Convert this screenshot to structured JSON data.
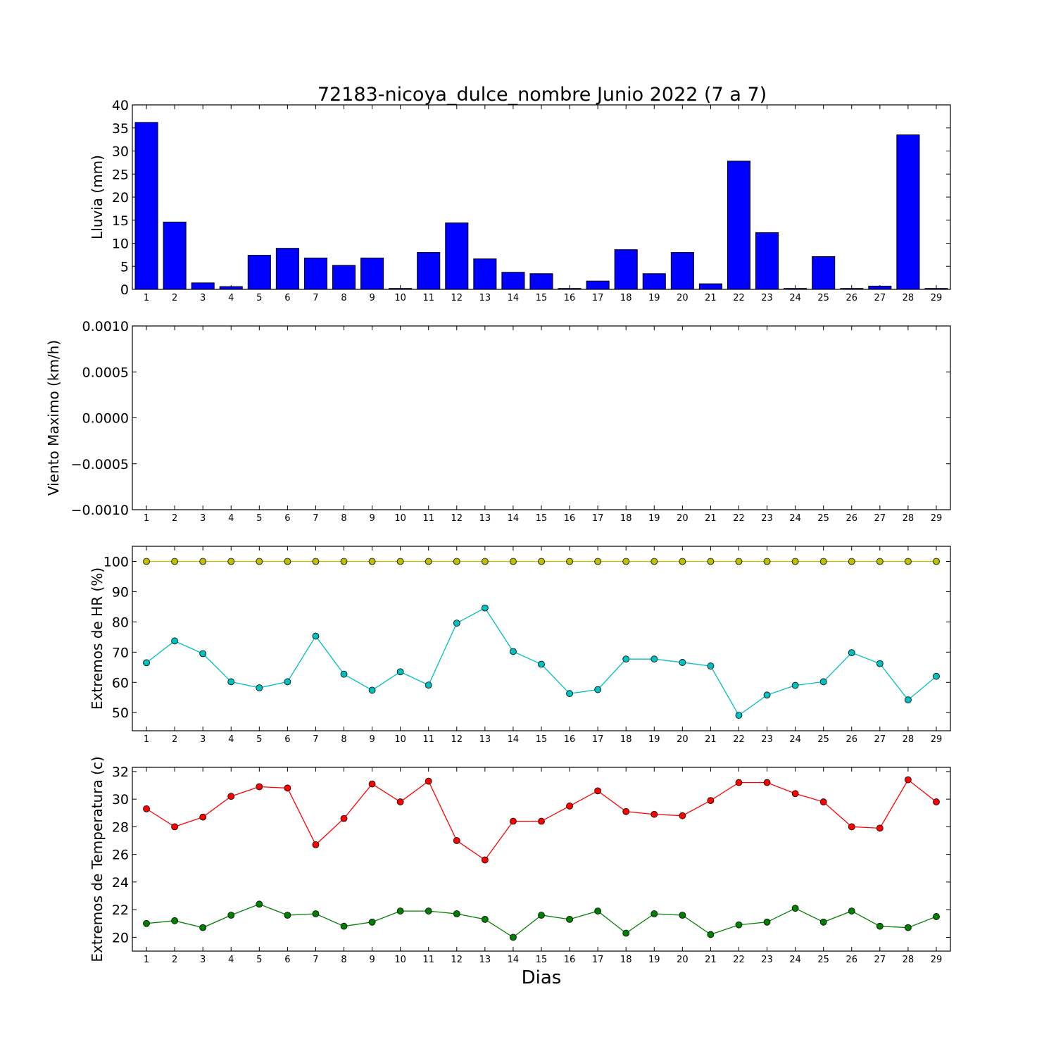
{
  "title": "72183-nicoya_dulce_nombre Junio 2022  (7 a 7)",
  "xlabel": "Dias",
  "chart_data": [
    {
      "type": "bar",
      "ylabel": "Lluvia (mm)",
      "ylim": [
        0,
        40
      ],
      "yticks": [
        "0",
        "5",
        "10",
        "15",
        "20",
        "25",
        "30",
        "35",
        "40"
      ],
      "x": [
        1,
        2,
        3,
        4,
        5,
        6,
        7,
        8,
        9,
        10,
        11,
        12,
        13,
        14,
        15,
        16,
        17,
        18,
        19,
        20,
        21,
        22,
        23,
        24,
        25,
        26,
        27,
        28,
        29
      ],
      "xticks": [
        "1",
        "2",
        "3",
        "4",
        "5",
        "6",
        "7",
        "8",
        "9",
        "10",
        "11",
        "12",
        "13",
        "14",
        "15",
        "16",
        "17",
        "18",
        "19",
        "20",
        "21",
        "22",
        "23",
        "24",
        "25",
        "26",
        "27",
        "28",
        "29"
      ],
      "series": [
        {
          "color": "#0000ff",
          "values": [
            36.2,
            14.6,
            1.4,
            0.6,
            7.4,
            8.9,
            6.8,
            5.2,
            6.8,
            0.2,
            8.0,
            14.4,
            6.6,
            3.7,
            3.4,
            0.2,
            1.8,
            8.6,
            3.4,
            8.0,
            1.2,
            27.8,
            12.3,
            0.2,
            7.1,
            0.2,
            0.7,
            33.5,
            0.2
          ]
        }
      ]
    },
    {
      "type": "line",
      "ylabel": "Viento Maximo (km/h)",
      "ylim": [
        -0.001,
        0.001
      ],
      "yticks": [
        "−0.0010",
        "−0.0005",
        "0.0000",
        "0.0005",
        "0.0010"
      ],
      "x": [
        1,
        2,
        3,
        4,
        5,
        6,
        7,
        8,
        9,
        10,
        11,
        12,
        13,
        14,
        15,
        16,
        17,
        18,
        19,
        20,
        21,
        22,
        23,
        24,
        25,
        26,
        27,
        28,
        29
      ],
      "xticks": [
        "1",
        "2",
        "3",
        "4",
        "5",
        "6",
        "7",
        "8",
        "9",
        "10",
        "11",
        "12",
        "13",
        "14",
        "15",
        "16",
        "17",
        "18",
        "19",
        "20",
        "21",
        "22",
        "23",
        "24",
        "25",
        "26",
        "27",
        "28",
        "29"
      ],
      "series": []
    },
    {
      "type": "line",
      "ylabel": "Extremos de HR (%)",
      "ylim": [
        44,
        105
      ],
      "yticks": [
        "50",
        "60",
        "70",
        "80",
        "90",
        "100"
      ],
      "x": [
        1,
        2,
        3,
        4,
        5,
        6,
        7,
        8,
        9,
        10,
        11,
        12,
        13,
        14,
        15,
        16,
        17,
        18,
        19,
        20,
        21,
        22,
        23,
        24,
        25,
        26,
        27,
        28,
        29
      ],
      "xticks": [
        "1",
        "2",
        "3",
        "4",
        "5",
        "6",
        "7",
        "8",
        "9",
        "10",
        "11",
        "12",
        "13",
        "14",
        "15",
        "16",
        "17",
        "18",
        "19",
        "20",
        "21",
        "22",
        "23",
        "24",
        "25",
        "26",
        "27",
        "28",
        "29"
      ],
      "series": [
        {
          "color": "#bfbf00",
          "values": [
            100,
            100,
            100,
            100,
            100,
            100,
            100,
            100,
            100,
            100,
            100,
            100,
            100,
            100,
            100,
            100,
            100,
            100,
            100,
            100,
            100,
            100,
            100,
            100,
            100,
            100,
            100,
            100,
            100
          ]
        },
        {
          "color": "#00bfbf",
          "values": [
            66.5,
            73.7,
            69.5,
            60.2,
            58.2,
            60.2,
            75.3,
            62.7,
            57.4,
            63.5,
            59.1,
            79.6,
            84.6,
            70.2,
            66.0,
            56.3,
            57.6,
            67.7,
            67.7,
            66.6,
            65.4,
            49.1,
            55.8,
            59.0,
            60.2,
            69.8,
            66.2,
            54.2,
            62.0
          ]
        }
      ]
    },
    {
      "type": "line",
      "ylabel": "Extremos de Temperatura (c)",
      "ylim": [
        19,
        32.3
      ],
      "yticks": [
        "20",
        "22",
        "24",
        "26",
        "28",
        "30",
        "32"
      ],
      "x": [
        1,
        2,
        3,
        4,
        5,
        6,
        7,
        8,
        9,
        10,
        11,
        12,
        13,
        14,
        15,
        16,
        17,
        18,
        19,
        20,
        21,
        22,
        23,
        24,
        25,
        26,
        27,
        28,
        29
      ],
      "xticks": [
        "1",
        "2",
        "3",
        "4",
        "5",
        "6",
        "7",
        "8",
        "9",
        "10",
        "11",
        "12",
        "13",
        "14",
        "15",
        "16",
        "17",
        "18",
        "19",
        "20",
        "21",
        "22",
        "23",
        "24",
        "25",
        "26",
        "27",
        "28",
        "29"
      ],
      "series": [
        {
          "color": "#ff0000",
          "values": [
            29.3,
            28.0,
            28.7,
            30.2,
            30.9,
            30.8,
            26.7,
            28.6,
            31.1,
            29.8,
            31.3,
            27.0,
            25.6,
            28.4,
            28.4,
            29.5,
            30.6,
            29.1,
            28.9,
            28.8,
            29.9,
            31.2,
            31.2,
            30.4,
            29.8,
            28.0,
            27.9,
            31.4,
            29.8
          ]
        },
        {
          "color": "#008000",
          "values": [
            21.0,
            21.2,
            20.7,
            21.6,
            22.4,
            21.6,
            21.7,
            20.8,
            21.1,
            21.9,
            21.9,
            21.7,
            21.3,
            20.0,
            21.6,
            21.3,
            21.9,
            20.3,
            21.7,
            21.6,
            20.2,
            20.9,
            21.1,
            22.1,
            21.1,
            21.9,
            20.8,
            20.7,
            21.5
          ]
        }
      ]
    }
  ]
}
